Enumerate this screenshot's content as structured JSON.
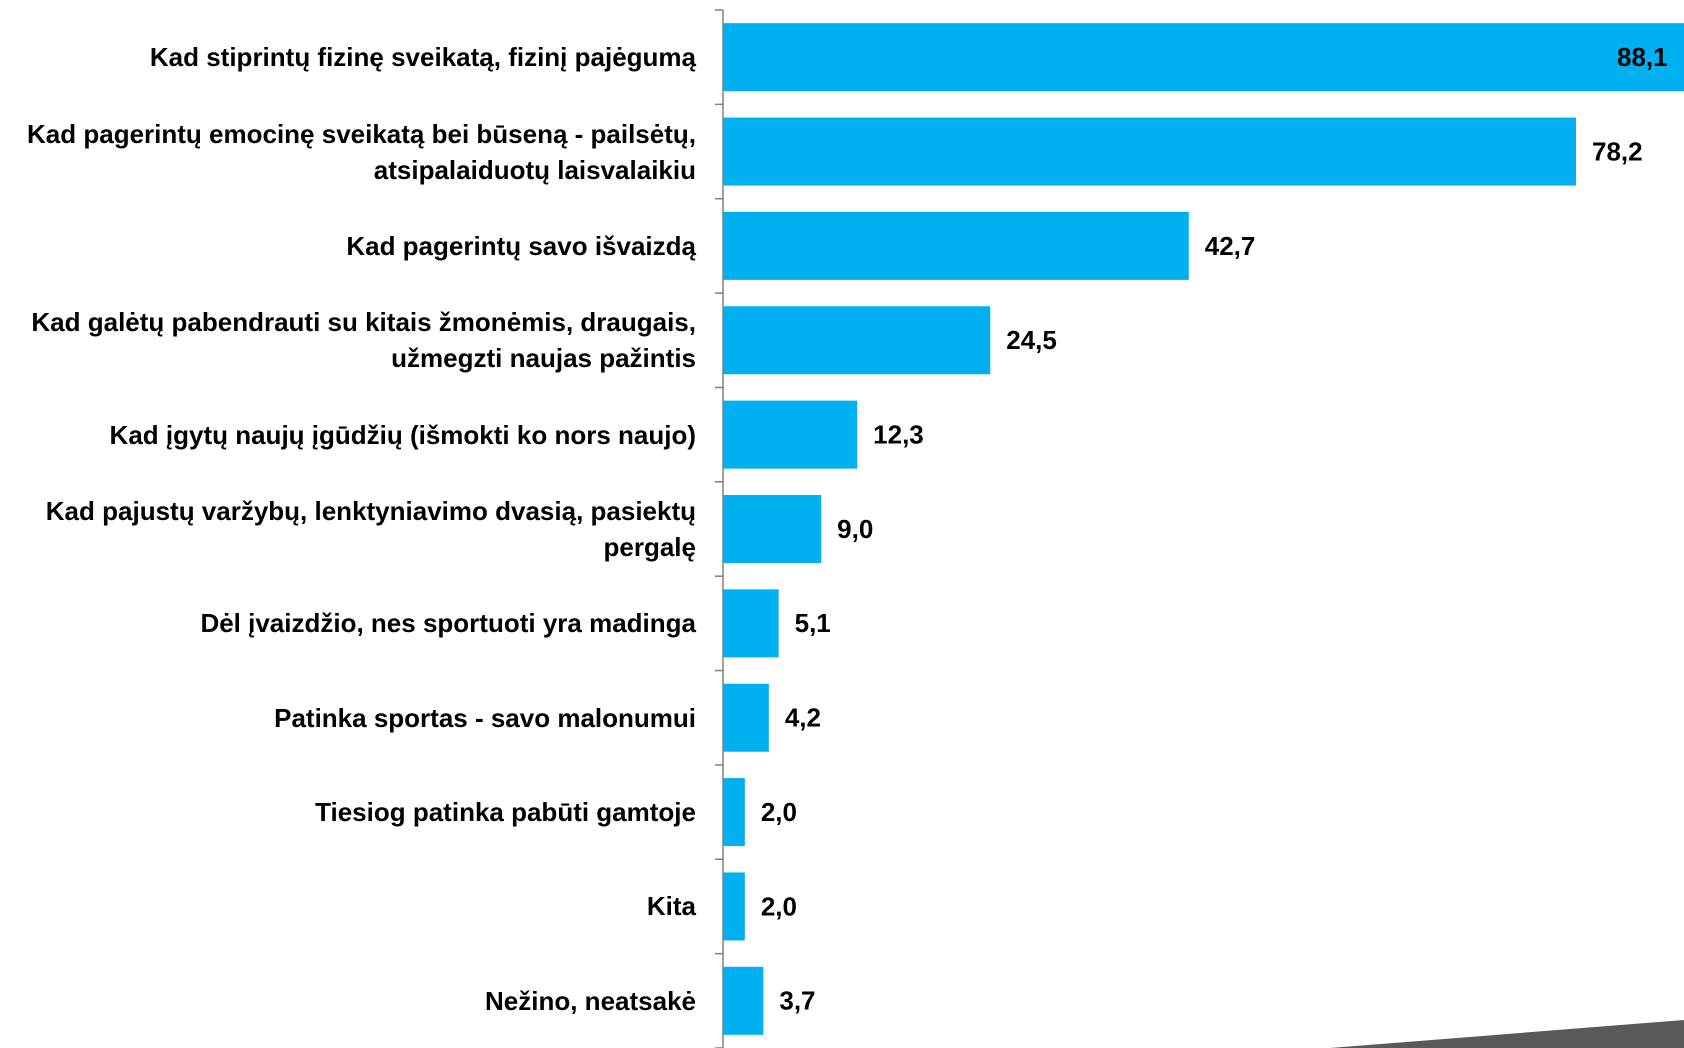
{
  "chart_data": {
    "type": "bar",
    "orientation": "horizontal",
    "color": "#00b0f0",
    "categories": [
      "Kad stiprintų fizinę sveikatą, fizinį pajėgumą",
      "Kad pagerintų emocinę sveikatą bei būseną - pailsėtų, atsipalaiduotų laisvalaikiu",
      "Kad pagerintų savo išvaizdą",
      "Kad galėtų pabendrauti su kitais žmonėmis, draugais, užmegzti naujas pažintis",
      "Kad įgytų naujų įgūdžių (išmokti ko nors naujo)",
      "Kad pajustų varžybų, lenktyniavimo dvasią, pasiektų pergalę",
      "Dėl įvaizdžio, nes sportuoti yra madinga",
      "Patinka sportas - savo malonumui",
      "Tiesiog patinka pabūti gamtoje",
      "Kita",
      "Nežino, neatsakė"
    ],
    "values": [
      88.1,
      78.2,
      42.7,
      24.5,
      12.3,
      9.0,
      5.1,
      4.2,
      2.0,
      2.0,
      3.7
    ],
    "value_labels": [
      "88,1",
      "78,2",
      "42,7",
      "24,5",
      "12,3",
      "9,0",
      "5,1",
      "4,2",
      "2,0",
      "2,0",
      "3,7"
    ]
  }
}
